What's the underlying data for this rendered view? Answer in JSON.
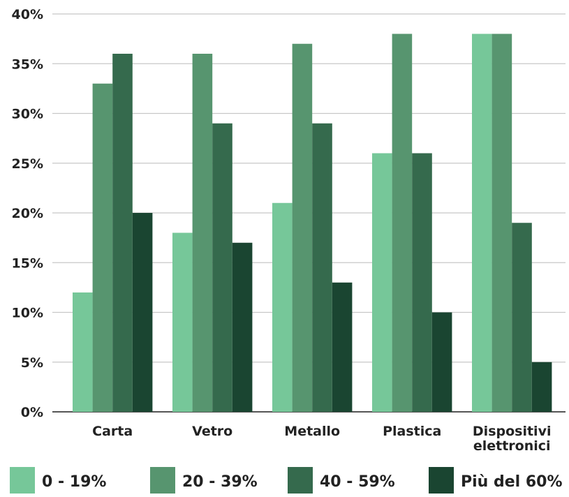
{
  "chart_data": {
    "type": "bar",
    "title": "",
    "xlabel": "",
    "ylabel": "",
    "ylim": [
      0,
      40
    ],
    "yticks": [
      "0%",
      "5%",
      "10%",
      "15%",
      "20%",
      "25%",
      "30%",
      "35%",
      "40%"
    ],
    "grid": true,
    "legend_position": "bottom",
    "categories": [
      [
        "Carta"
      ],
      [
        "Vetro"
      ],
      [
        "Metallo"
      ],
      [
        "Plastica"
      ],
      [
        "Dispositivi",
        "elettronici"
      ]
    ],
    "series": [
      {
        "name": "0 - 19%",
        "color": "#76c799",
        "values": [
          12,
          18,
          21,
          26,
          38
        ]
      },
      {
        "name": "20 - 39%",
        "color": "#57956f",
        "values": [
          33,
          36,
          37,
          38,
          38
        ]
      },
      {
        "name": "40 - 59%",
        "color": "#356a4d",
        "values": [
          36,
          29,
          29,
          26,
          19
        ]
      },
      {
        "name": "Più del 60%",
        "color": "#1a4531",
        "values": [
          20,
          17,
          13,
          10,
          5
        ]
      }
    ]
  }
}
